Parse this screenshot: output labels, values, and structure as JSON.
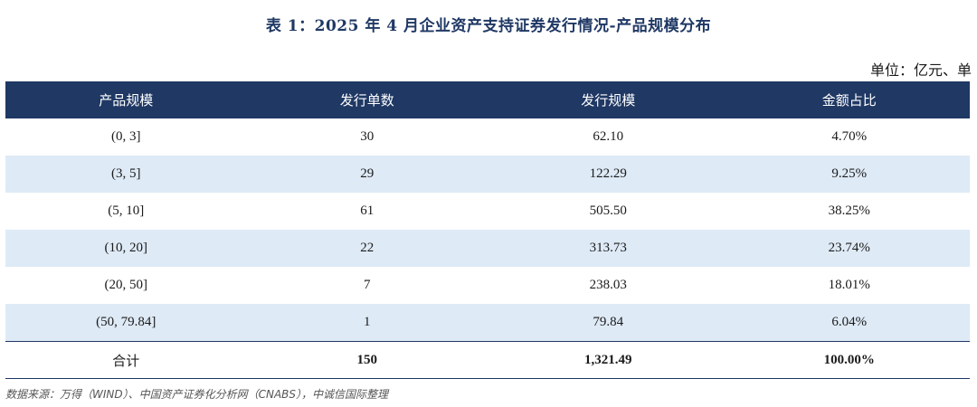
{
  "title": "表 1：2025 年 4 月企业资产支持证券发行情况-产品规模分布",
  "unit": "单位：亿元、单",
  "table": {
    "headers": [
      "产品规模",
      "发行单数",
      "发行规模",
      "金额占比"
    ],
    "rows": [
      [
        "(0, 3]",
        "30",
        "62.10",
        "4.70%"
      ],
      [
        "(3, 5]",
        "29",
        "122.29",
        "9.25%"
      ],
      [
        "(5, 10]",
        "61",
        "505.50",
        "38.25%"
      ],
      [
        "(10, 20]",
        "22",
        "313.73",
        "23.74%"
      ],
      [
        "(20, 50]",
        "7",
        "238.03",
        "18.01%"
      ],
      [
        "(50, 79.84]",
        "1",
        "79.84",
        "6.04%"
      ]
    ],
    "total": [
      "合计",
      "150",
      "1,321.49",
      "100.00%"
    ]
  },
  "source": "数据来源：万得（WIND）、中国资产证券化分析网（CNABS），中诚信国际整理",
  "colors": {
    "header_bg": "#1f3864",
    "alt_row_bg": "#deeaf6",
    "title_color": "#1f3864"
  }
}
